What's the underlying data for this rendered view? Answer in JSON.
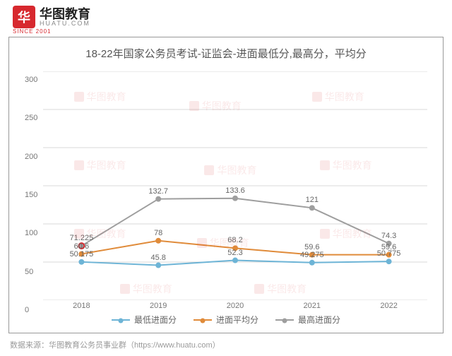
{
  "logo": {
    "mark": "华",
    "cn": "华图教育",
    "en": "HUATU.COM",
    "year": "SINCE 2001"
  },
  "source": "数据来源：华图教育公务员事业群（https://www.huatu.com）",
  "chart": {
    "type": "line",
    "title": "18-22年国家公务员考试-证监会-进面最低分,最高分，平均分",
    "title_fontsize": 15,
    "categories": [
      "2018",
      "2019",
      "2020",
      "2021",
      "2022"
    ],
    "ylim": [
      0,
      300
    ],
    "ytick_step": 50,
    "grid_color": "#d9d9d9",
    "background_color": "#ffffff",
    "label_fontsize": 11,
    "series": [
      {
        "name": "最低进面分",
        "color": "#6db4d6",
        "values": [
          50.175,
          45.8,
          52.3,
          49.275,
          50.775
        ],
        "line_width": 2,
        "marker": "circle"
      },
      {
        "name": "进面平均分",
        "color": "#e08b3a",
        "values": [
          60.6,
          78.0,
          68.2,
          59.6,
          59.6
        ],
        "line_width": 2,
        "marker": "circle"
      },
      {
        "name": "最高进面分",
        "color": "#9e9e9e",
        "values": [
          71.225,
          132.7,
          133.6,
          121,
          74.3
        ],
        "line_width": 2,
        "marker": "circle"
      }
    ],
    "highlight": {
      "series": 2,
      "index": 0,
      "stroke": "#d7282e"
    }
  },
  "watermark": {
    "text": "华图教育",
    "sub": "HUATU.COM"
  }
}
